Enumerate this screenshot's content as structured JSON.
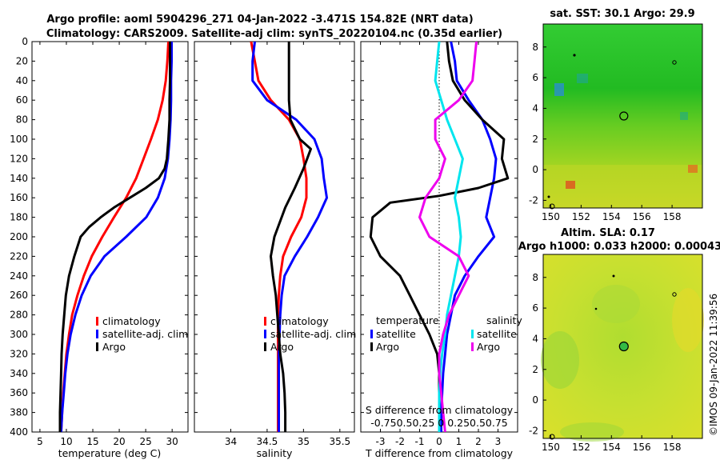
{
  "header": {
    "title_line1": "Argo profile: aoml 5904296_271 04-Jan-2022 -3.471S 154.82E (NRT data)",
    "title_line2": "Climatology: CARS2009. Satellite-adj clim: synTS_20220104.nc (0.35d earlier)"
  },
  "side_label": "©IMOS 09-Jan-2022 11:39:56",
  "colors": {
    "climatology": "#ff0000",
    "satellite": "#0000ff",
    "argo": "#000000",
    "s_satellite": "#00e5ee",
    "s_argo": "#ee00ee"
  },
  "chart_data": [
    {
      "type": "line",
      "name": "temperature",
      "xlabel": "temperature (deg C)",
      "ylabel": "",
      "xlim": [
        3.5,
        33
      ],
      "ylim": [
        400,
        0
      ],
      "xticks": [
        "5",
        "10",
        "15",
        "20",
        "25",
        "30"
      ],
      "yticks": [
        "0",
        "20",
        "40",
        "60",
        "80",
        "100",
        "120",
        "140",
        "160",
        "180",
        "200",
        "220",
        "240",
        "260",
        "280",
        "300",
        "320",
        "340",
        "360",
        "380",
        "400"
      ],
      "legend": [
        "climatology",
        "satellite-adj. clim",
        "Argo"
      ],
      "series": [
        {
          "name": "climatology",
          "points": [
            [
              29.3,
              0
            ],
            [
              29.1,
              20
            ],
            [
              28.8,
              40
            ],
            [
              28.2,
              60
            ],
            [
              27.3,
              80
            ],
            [
              26.0,
              100
            ],
            [
              24.6,
              120
            ],
            [
              23.2,
              140
            ],
            [
              21.3,
              160
            ],
            [
              19.0,
              180
            ],
            [
              16.8,
              200
            ],
            [
              14.8,
              220
            ],
            [
              13.3,
              240
            ],
            [
              12.1,
              260
            ],
            [
              11.1,
              280
            ],
            [
              10.5,
              300
            ],
            [
              10.0,
              320
            ],
            [
              9.7,
              340
            ],
            [
              9.4,
              360
            ],
            [
              9.2,
              380
            ],
            [
              9.0,
              400
            ]
          ]
        },
        {
          "name": "satellite-adj. clim",
          "points": [
            [
              29.9,
              0
            ],
            [
              29.9,
              20
            ],
            [
              29.8,
              40
            ],
            [
              29.8,
              60
            ],
            [
              29.7,
              80
            ],
            [
              29.5,
              100
            ],
            [
              29.2,
              120
            ],
            [
              28.6,
              140
            ],
            [
              27.3,
              160
            ],
            [
              25.1,
              180
            ],
            [
              21.3,
              200
            ],
            [
              17.2,
              220
            ],
            [
              14.6,
              240
            ],
            [
              12.9,
              260
            ],
            [
              11.7,
              280
            ],
            [
              10.8,
              300
            ],
            [
              10.2,
              320
            ],
            [
              9.8,
              340
            ],
            [
              9.5,
              360
            ],
            [
              9.2,
              380
            ],
            [
              9.0,
              400
            ]
          ]
        },
        {
          "name": "Argo",
          "points": [
            [
              29.6,
              0
            ],
            [
              29.6,
              20
            ],
            [
              29.6,
              40
            ],
            [
              29.5,
              60
            ],
            [
              29.5,
              80
            ],
            [
              29.3,
              100
            ],
            [
              29.0,
              120
            ],
            [
              28.6,
              130
            ],
            [
              27.5,
              140
            ],
            [
              25.0,
              150
            ],
            [
              22.0,
              160
            ],
            [
              19.0,
              170
            ],
            [
              16.5,
              180
            ],
            [
              14.3,
              190
            ],
            [
              12.7,
              200
            ],
            [
              11.5,
              220
            ],
            [
              10.5,
              240
            ],
            [
              9.9,
              260
            ],
            [
              9.6,
              280
            ],
            [
              9.3,
              300
            ],
            [
              9.1,
              320
            ],
            [
              9.0,
              340
            ],
            [
              8.9,
              360
            ],
            [
              8.8,
              380
            ],
            [
              8.8,
              400
            ]
          ]
        }
      ]
    },
    {
      "type": "line",
      "name": "salinity",
      "xlabel": "salinity",
      "ylabel": "",
      "xlim": [
        33.5,
        35.7
      ],
      "ylim": [
        400,
        0
      ],
      "xticks": [
        "34",
        "34.5",
        "35",
        "35.5"
      ],
      "legend": [
        "climatology",
        "satellite-adj. clim",
        "Argo"
      ],
      "series": [
        {
          "name": "climatology",
          "points": [
            [
              34.28,
              0
            ],
            [
              34.33,
              20
            ],
            [
              34.38,
              40
            ],
            [
              34.55,
              60
            ],
            [
              34.8,
              80
            ],
            [
              34.95,
              100
            ],
            [
              35.0,
              120
            ],
            [
              35.04,
              140
            ],
            [
              35.04,
              160
            ],
            [
              34.97,
              180
            ],
            [
              34.83,
              200
            ],
            [
              34.72,
              220
            ],
            [
              34.68,
              240
            ],
            [
              34.66,
              260
            ],
            [
              34.65,
              280
            ],
            [
              34.65,
              300
            ],
            [
              34.65,
              320
            ],
            [
              34.65,
              340
            ],
            [
              34.65,
              360
            ],
            [
              34.65,
              380
            ],
            [
              34.65,
              400
            ]
          ]
        },
        {
          "name": "satellite-adj. clim",
          "points": [
            [
              34.33,
              0
            ],
            [
              34.3,
              20
            ],
            [
              34.3,
              40
            ],
            [
              34.5,
              60
            ],
            [
              34.9,
              80
            ],
            [
              35.15,
              100
            ],
            [
              35.25,
              120
            ],
            [
              35.28,
              140
            ],
            [
              35.32,
              160
            ],
            [
              35.2,
              180
            ],
            [
              35.05,
              200
            ],
            [
              34.88,
              220
            ],
            [
              34.74,
              240
            ],
            [
              34.7,
              260
            ],
            [
              34.68,
              280
            ],
            [
              34.67,
              300
            ],
            [
              34.66,
              320
            ],
            [
              34.66,
              340
            ],
            [
              34.66,
              360
            ],
            [
              34.66,
              380
            ],
            [
              34.66,
              400
            ]
          ]
        },
        {
          "name": "Argo",
          "points": [
            [
              34.8,
              0
            ],
            [
              34.8,
              20
            ],
            [
              34.8,
              40
            ],
            [
              34.8,
              60
            ],
            [
              34.82,
              80
            ],
            [
              34.95,
              100
            ],
            [
              35.1,
              110
            ],
            [
              35.0,
              130
            ],
            [
              34.88,
              150
            ],
            [
              34.75,
              170
            ],
            [
              34.6,
              200
            ],
            [
              34.55,
              220
            ],
            [
              34.58,
              240
            ],
            [
              34.62,
              260
            ],
            [
              34.64,
              280
            ],
            [
              34.66,
              300
            ],
            [
              34.68,
              320
            ],
            [
              34.72,
              340
            ],
            [
              34.74,
              360
            ],
            [
              34.75,
              380
            ],
            [
              34.75,
              400
            ]
          ]
        }
      ]
    },
    {
      "type": "line",
      "name": "differences",
      "xlabel": "T difference from climatology",
      "ylabel": "",
      "xlim": [
        -4.0,
        4.0
      ],
      "ylim": [
        400,
        0
      ],
      "xticks": [
        "-3",
        "-2",
        "-1",
        "0",
        "1",
        "2",
        "3"
      ],
      "top_axis_label": "S difference from climatology",
      "top_ticks": "-0.750.50.25  0  0.250.50.75",
      "legend": {
        "temperature_title": "temperature",
        "salinity_title": "salinity",
        "t_sat": "satellite",
        "t_argo": "Argo",
        "s_sat": "satellite",
        "s_argo": "Argo"
      },
      "series": [
        {
          "name": "temperature satellite",
          "points": [
            [
              0.6,
              0
            ],
            [
              0.8,
              20
            ],
            [
              0.9,
              40
            ],
            [
              1.5,
              60
            ],
            [
              2.2,
              80
            ],
            [
              2.6,
              100
            ],
            [
              2.9,
              120
            ],
            [
              2.8,
              140
            ],
            [
              2.6,
              160
            ],
            [
              2.4,
              180
            ],
            [
              2.8,
              200
            ],
            [
              2.0,
              220
            ],
            [
              1.3,
              240
            ],
            [
              0.8,
              260
            ],
            [
              0.6,
              280
            ],
            [
              0.4,
              300
            ],
            [
              0.3,
              320
            ],
            [
              0.2,
              340
            ],
            [
              0.15,
              360
            ],
            [
              0.1,
              380
            ],
            [
              0.1,
              400
            ]
          ]
        },
        {
          "name": "temperature Argo",
          "points": [
            [
              0.4,
              0
            ],
            [
              0.5,
              20
            ],
            [
              0.7,
              40
            ],
            [
              1.3,
              60
            ],
            [
              2.2,
              80
            ],
            [
              3.3,
              100
            ],
            [
              3.2,
              120
            ],
            [
              3.5,
              140
            ],
            [
              2.0,
              150
            ],
            [
              0.0,
              158
            ],
            [
              -2.5,
              165
            ],
            [
              -3.4,
              180
            ],
            [
              -3.5,
              200
            ],
            [
              -3.0,
              220
            ],
            [
              -2.0,
              240
            ],
            [
              -1.5,
              260
            ],
            [
              -1.0,
              280
            ],
            [
              -0.5,
              300
            ],
            [
              -0.1,
              320
            ],
            [
              0.0,
              340
            ],
            [
              0.0,
              360
            ],
            [
              0.0,
              380
            ],
            [
              0.0,
              400
            ]
          ]
        },
        {
          "name": "salinity satellite",
          "points": [
            [
              0.0,
              0
            ],
            [
              -0.1,
              20
            ],
            [
              -0.2,
              40
            ],
            [
              0.1,
              60
            ],
            [
              0.4,
              80
            ],
            [
              0.8,
              100
            ],
            [
              1.2,
              120
            ],
            [
              1.0,
              140
            ],
            [
              0.8,
              160
            ],
            [
              1.0,
              180
            ],
            [
              1.1,
              200
            ],
            [
              1.0,
              220
            ],
            [
              0.8,
              240
            ],
            [
              0.6,
              260
            ],
            [
              0.4,
              280
            ],
            [
              0.3,
              300
            ],
            [
              0.15,
              320
            ],
            [
              0.05,
              340
            ],
            [
              0.0,
              360
            ],
            [
              0.0,
              380
            ],
            [
              0.0,
              400
            ]
          ]
        },
        {
          "name": "salinity Argo",
          "points": [
            [
              1.9,
              0
            ],
            [
              1.8,
              20
            ],
            [
              1.7,
              40
            ],
            [
              1.0,
              60
            ],
            [
              -0.2,
              80
            ],
            [
              -0.2,
              100
            ],
            [
              0.3,
              120
            ],
            [
              0.0,
              140
            ],
            [
              -0.7,
              160
            ],
            [
              -1.0,
              180
            ],
            [
              -0.5,
              200
            ],
            [
              1.0,
              220
            ],
            [
              1.5,
              240
            ],
            [
              1.0,
              260
            ],
            [
              0.5,
              280
            ],
            [
              0.2,
              300
            ],
            [
              0.0,
              320
            ],
            [
              0.0,
              340
            ],
            [
              0.1,
              360
            ],
            [
              0.2,
              380
            ],
            [
              0.3,
              400
            ]
          ]
        }
      ]
    },
    {
      "type": "heatmap",
      "name": "sst_map",
      "title": "sat. SST: 30.1 Argo: 29.9",
      "xlim": [
        149.5,
        160.0
      ],
      "ylim": [
        -2.5,
        9.5
      ],
      "xticks": [
        "150",
        "152",
        "154",
        "156",
        "158"
      ],
      "yticks": [
        "-2",
        "0",
        "2",
        "4",
        "6",
        "8"
      ],
      "marker": {
        "lon": 154.82,
        "lat": 3.5
      }
    },
    {
      "type": "heatmap",
      "name": "sla_map",
      "title_line1": "Altim. SLA: 0.17",
      "title_line2": "Argo h1000: 0.033 h2000: 0.00043",
      "xlim": [
        149.5,
        160.0
      ],
      "ylim": [
        -2.5,
        9.5
      ],
      "xticks": [
        "150",
        "152",
        "154",
        "156",
        "158"
      ],
      "yticks": [
        "-2",
        "0",
        "2",
        "4",
        "6",
        "8"
      ],
      "marker": {
        "lon": 154.82,
        "lat": 3.5
      }
    }
  ]
}
